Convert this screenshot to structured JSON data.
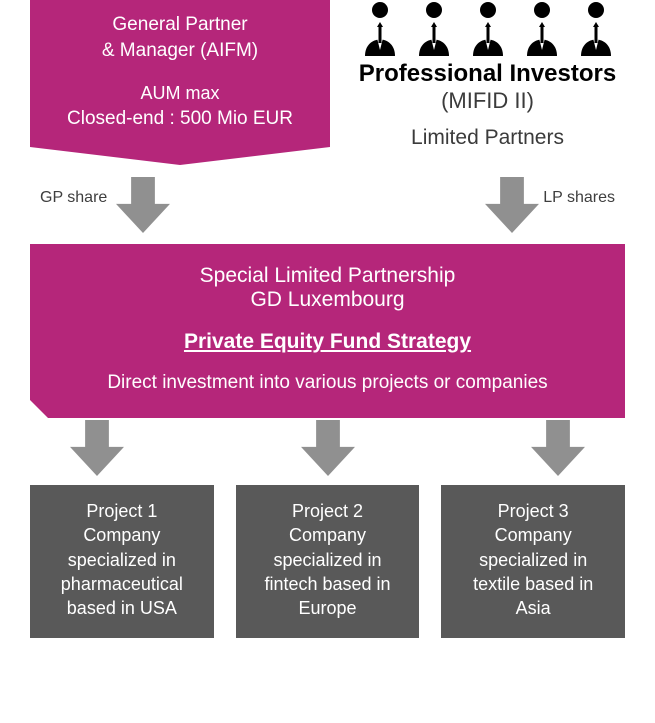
{
  "colors": {
    "magenta": "#b5267a",
    "darkgray": "#595959",
    "arrow": "#909090",
    "textgray": "#3b3b3b"
  },
  "gp": {
    "line1": "General Partner",
    "line2": "& Manager (AIFM)",
    "line3": "AUM max",
    "line4": "Closed-end : 500 Mio EUR"
  },
  "investors": {
    "title": "Professional Investors",
    "sub1": "(MIFID II)",
    "sub2": "Limited Partners",
    "icon_count": 5
  },
  "labels": {
    "gp_share": "GP share",
    "lp_shares": "LP shares"
  },
  "mid": {
    "l1": "Special Limited Partnership",
    "l2": "GD Luxembourg",
    "l3": "Private Equity Fund Strategy",
    "l4": "Direct investment into various projects or companies"
  },
  "projects": [
    {
      "title": "Project 1",
      "l2": "Company",
      "l3": "specialized in",
      "l4": "pharmaceutical",
      "l5": "based in USA"
    },
    {
      "title": "Project 2",
      "l2": "Company",
      "l3": "specialized in",
      "l4": "fintech based in",
      "l5": "Europe"
    },
    {
      "title": "Project 3",
      "l2": "Company",
      "l3": "specialized in",
      "l4": "textile based in",
      "l5": "Asia"
    }
  ],
  "shapes": {
    "pentagon_notch": 18,
    "arrow_w": 54,
    "arrow_h": 56
  }
}
